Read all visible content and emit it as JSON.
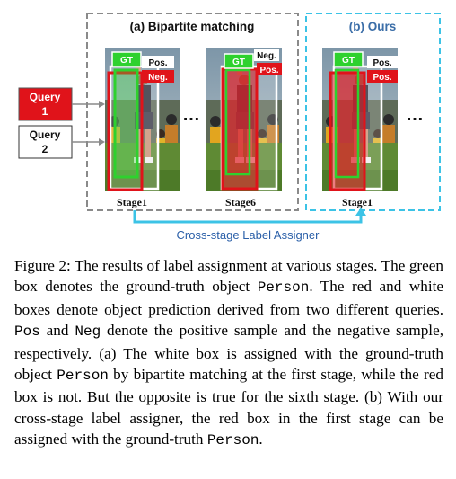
{
  "panels": {
    "a_title": "(a) Bipartite matching",
    "b_title": "(b) Ours"
  },
  "queries": [
    {
      "line1": "Query",
      "line2": "1",
      "color": "#e0131a"
    },
    {
      "line1": "Query",
      "line2": "2",
      "color": "#ffffff"
    }
  ],
  "labels": {
    "gt": "GT",
    "pos": "Pos.",
    "neg": "Neg.",
    "ellipsis": "…"
  },
  "stages": {
    "stage1": "Stage1",
    "stage6": "Stage6",
    "ours_stage1": "Stage1"
  },
  "assigner_label": "Cross-stage Label Assigner",
  "colors": {
    "red": "#e0131a",
    "green": "#2ed12e",
    "cyan": "#3cc3e6",
    "dash_gray": "#8a8a8a",
    "assigner_text": "#2a5fa8",
    "ours_title": "#3b6ea8"
  },
  "caption": {
    "p1": "Figure 2: The results of label assignment at various stages. The green box denotes the ground-truth object ",
    "person1": "Person",
    "p2": ". The red and white boxes denote object prediction derived from two different queries. ",
    "pos": "Pos",
    "p3": " and ",
    "neg": "Neg",
    "p4": " denote the positive sample and the negative sample, respectively. (a) The white box is assigned with the ground-truth object ",
    "person2": "Person",
    "p5": " by bipartite matching at the first stage, while the red box is not. But the opposite is true for the sixth stage. (b) With our cross-stage label assigner, the red box in the first stage can be assigned with the ground-truth ",
    "person3": "Person",
    "p6": "."
  }
}
